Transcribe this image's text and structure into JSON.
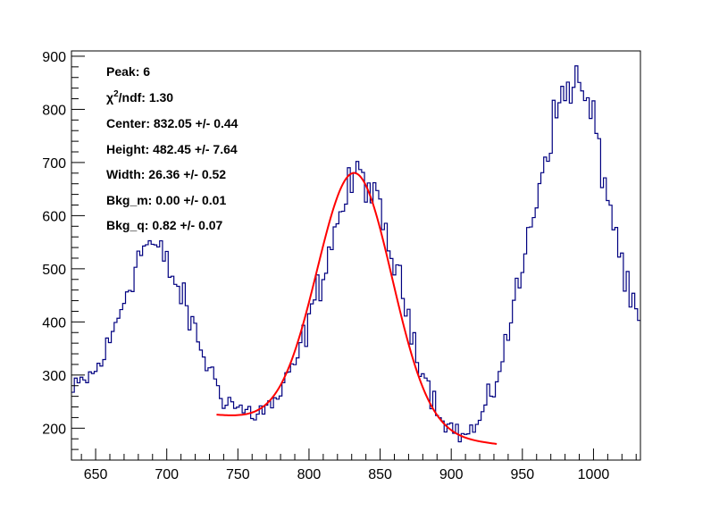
{
  "chart_data": {
    "type": "line",
    "title": "",
    "xlabel": "",
    "ylabel": "",
    "xlim": [
      633,
      1033
    ],
    "ylim": [
      140,
      910
    ],
    "x_ticks": [
      650,
      700,
      750,
      800,
      850,
      900,
      950,
      1000
    ],
    "y_ticks": [
      200,
      300,
      400,
      500,
      600,
      700,
      800,
      900
    ],
    "grid": false,
    "legend": "none",
    "annotations": {
      "peak": "Peak: 6",
      "chi2_sym": "χ",
      "chi2_sup": "2",
      "chi2_rest": "/ndf: 1.30",
      "center": "Center: 832.05 +/- 0.44",
      "height": "Height: 482.45 +/- 7.64",
      "width": "Width: 26.36 +/- 0.52",
      "bkg_m": "Bkg_m: 0.00 +/- 0.01",
      "bkg_q": "Bkg_q: 0.82 +/- 0.07"
    },
    "series": [
      {
        "kind": "histogram",
        "color": "#000080",
        "bin_width": 2,
        "x_start": 633,
        "envelope": [
          [
            633,
            262
          ],
          [
            640,
            285
          ],
          [
            650,
            305
          ],
          [
            660,
            360
          ],
          [
            670,
            445
          ],
          [
            680,
            520
          ],
          [
            685,
            548
          ],
          [
            690,
            545
          ],
          [
            700,
            510
          ],
          [
            710,
            450
          ],
          [
            720,
            380
          ],
          [
            730,
            310
          ],
          [
            740,
            260
          ],
          [
            750,
            238
          ],
          [
            760,
            228
          ],
          [
            770,
            235
          ],
          [
            780,
            262
          ],
          [
            790,
            318
          ],
          [
            800,
            400
          ],
          [
            810,
            495
          ],
          [
            820,
            590
          ],
          [
            830,
            660
          ],
          [
            835,
            680
          ],
          [
            840,
            668
          ],
          [
            850,
            600
          ],
          [
            860,
            510
          ],
          [
            870,
            410
          ],
          [
            880,
            310
          ],
          [
            890,
            238
          ],
          [
            900,
            200
          ],
          [
            910,
            185
          ],
          [
            920,
            210
          ],
          [
            930,
            275
          ],
          [
            940,
            380
          ],
          [
            950,
            500
          ],
          [
            960,
            640
          ],
          [
            970,
            760
          ],
          [
            980,
            835
          ],
          [
            985,
            855
          ],
          [
            990,
            845
          ],
          [
            1000,
            775
          ],
          [
            1010,
            640
          ],
          [
            1020,
            510
          ],
          [
            1025,
            440
          ],
          [
            1033,
            395
          ]
        ]
      },
      {
        "kind": "fit",
        "color": "#ff0000",
        "range": [
          735,
          932
        ],
        "center": 832.05,
        "height": 482.45,
        "width": 26.36,
        "bkg_left": 225,
        "bkg_right": 170
      }
    ]
  }
}
